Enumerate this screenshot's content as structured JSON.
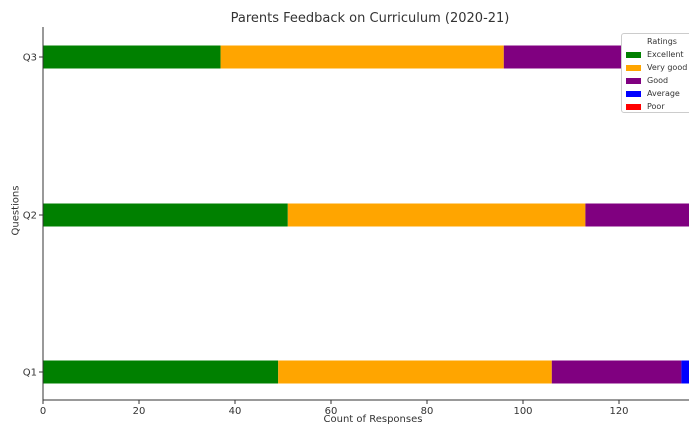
{
  "chart_data": {
    "type": "bar",
    "orientation": "horizontal",
    "stacked": true,
    "title": "Parents Feedback on Curriculum (2020-21)",
    "xlabel": "Count of Responses",
    "ylabel": "Questions",
    "categories": [
      "Q1",
      "Q2",
      "Q3"
    ],
    "xlim": [
      0,
      135
    ],
    "xticks": [
      0,
      20,
      40,
      60,
      80,
      100,
      120
    ],
    "legend_title": "Ratings",
    "legend_position": "top-right",
    "grid": false,
    "series": [
      {
        "name": "Excellent",
        "color": "#008000",
        "values": [
          49,
          51,
          37
        ]
      },
      {
        "name": "Very good",
        "color": "#FFA500",
        "values": [
          57,
          62,
          59
        ]
      },
      {
        "name": "Good",
        "color": "#800080",
        "values": [
          27,
          22,
          39
        ]
      },
      {
        "name": "Average",
        "color": "#0000FF",
        "values": [
          2,
          0,
          0
        ]
      },
      {
        "name": "Poor",
        "color": "#FF0000",
        "values": [
          0,
          0,
          0
        ]
      }
    ]
  }
}
